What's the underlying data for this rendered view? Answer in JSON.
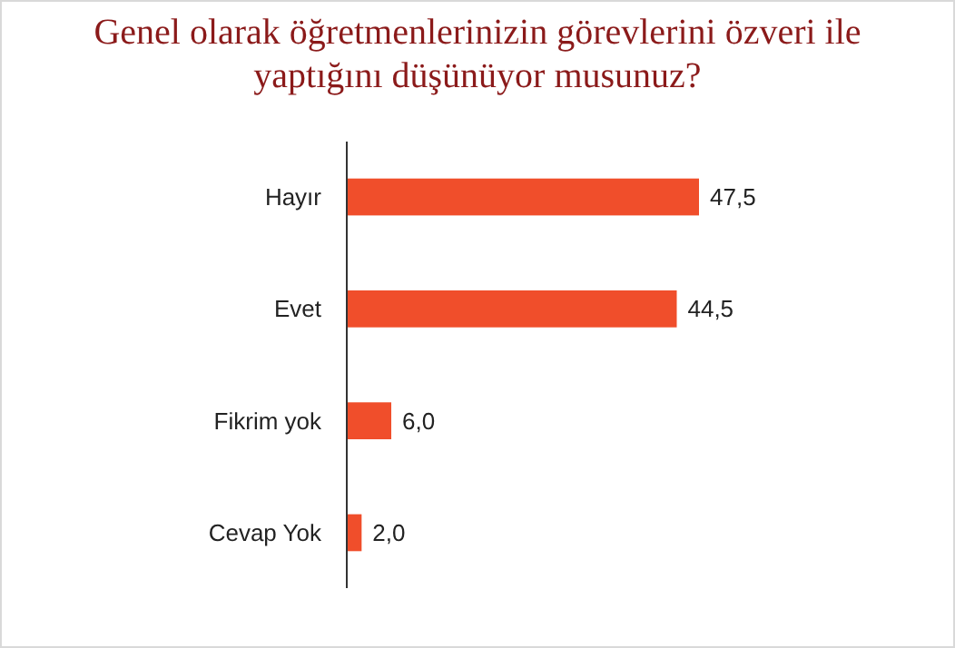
{
  "chart_data": {
    "type": "bar",
    "orientation": "horizontal",
    "title": "Genel olarak öğretmenlerinizin görevlerini özveri ile yaptığını düşünüyor musunuz?",
    "categories": [
      "Hayır",
      "Evet",
      "Fikrim yok",
      "Cevap Yok"
    ],
    "values": [
      47.5,
      44.5,
      6.0,
      2.0
    ],
    "value_labels": [
      "47,5",
      "44,5",
      "6,0",
      "2,0"
    ],
    "color": "#f04e2b"
  }
}
